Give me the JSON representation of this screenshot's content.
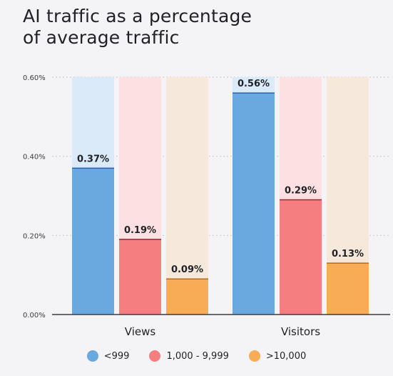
{
  "title_line1": "AI traffic as a percentage",
  "title_line2": "of average traffic",
  "colors": {
    "<999": {
      "bar": "#6aa9df",
      "bg": "#dbeaf8",
      "edge": "#2f5fb0"
    },
    "1,000 - 9,999": {
      "bar": "#f47f80",
      "bg": "#fde0e2",
      "edge": "#9a2a32"
    },
    ">10,000": {
      "bar": "#f8ac55",
      "bg": "#f6e9dc",
      "edge": "#b56a1c"
    }
  },
  "chart_data": {
    "type": "bar",
    "title": "AI traffic as a percentage of average traffic",
    "categories": [
      "Views",
      "Visitors"
    ],
    "series": [
      {
        "name": "<999",
        "values": [
          0.37,
          0.56
        ],
        "labels": [
          "0.37%",
          "0.56%"
        ]
      },
      {
        "name": "1,000 - 9,999",
        "values": [
          0.19,
          0.29
        ],
        "labels": [
          "0.19%",
          "0.29%"
        ]
      },
      {
        "name": ">10,000",
        "values": [
          0.09,
          0.13
        ],
        "labels": [
          "0.09%",
          "0.13%"
        ]
      }
    ],
    "ylim": [
      0,
      0.6
    ],
    "yticks": [
      0,
      0.2,
      0.4,
      0.6
    ],
    "ytick_labels": [
      "0.00%",
      "0.20%",
      "0.40%",
      "0.60%"
    ],
    "grid": true,
    "legend_position": "bottom"
  }
}
